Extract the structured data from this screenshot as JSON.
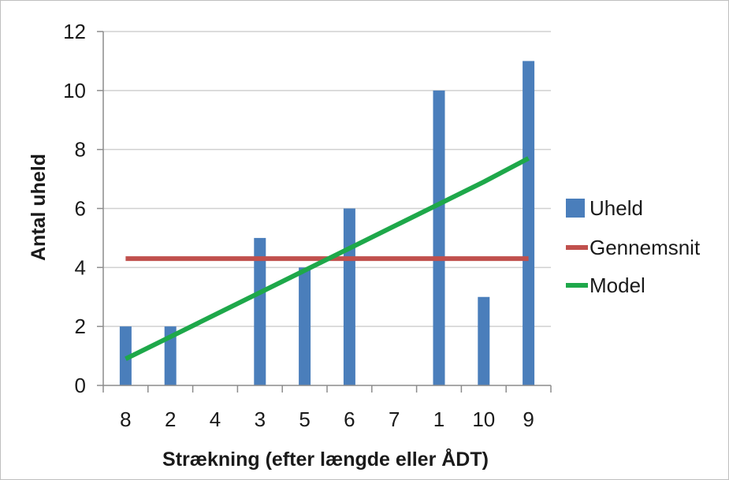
{
  "chart_data": {
    "type": "bar",
    "categories": [
      "8",
      "2",
      "4",
      "3",
      "5",
      "6",
      "7",
      "1",
      "10",
      "9"
    ],
    "series": [
      {
        "name": "Uheld",
        "type": "bar",
        "values": [
          2,
          2,
          0,
          5,
          4,
          6,
          0,
          10,
          3,
          11
        ],
        "color": "#4a7ebb"
      },
      {
        "name": "Gennemsnit",
        "type": "line",
        "values": [
          4.3,
          4.3,
          4.3,
          4.3,
          4.3,
          4.3,
          4.3,
          4.3,
          4.3,
          4.3
        ],
        "color": "#c0504d"
      },
      {
        "name": "Model",
        "type": "line",
        "values": [
          0.9,
          1.65,
          2.4,
          3.15,
          3.9,
          4.65,
          5.4,
          6.15,
          6.9,
          7.7
        ],
        "color": "#1ea84a"
      }
    ],
    "xlabel": "Strækning (efter længde eller ÅDT)",
    "ylabel": "Antal uheld",
    "ylim": [
      0,
      12
    ],
    "yticks": [
      "0",
      "2",
      "4",
      "6",
      "8",
      "10",
      "12"
    ],
    "grid": true,
    "legend": "right"
  }
}
